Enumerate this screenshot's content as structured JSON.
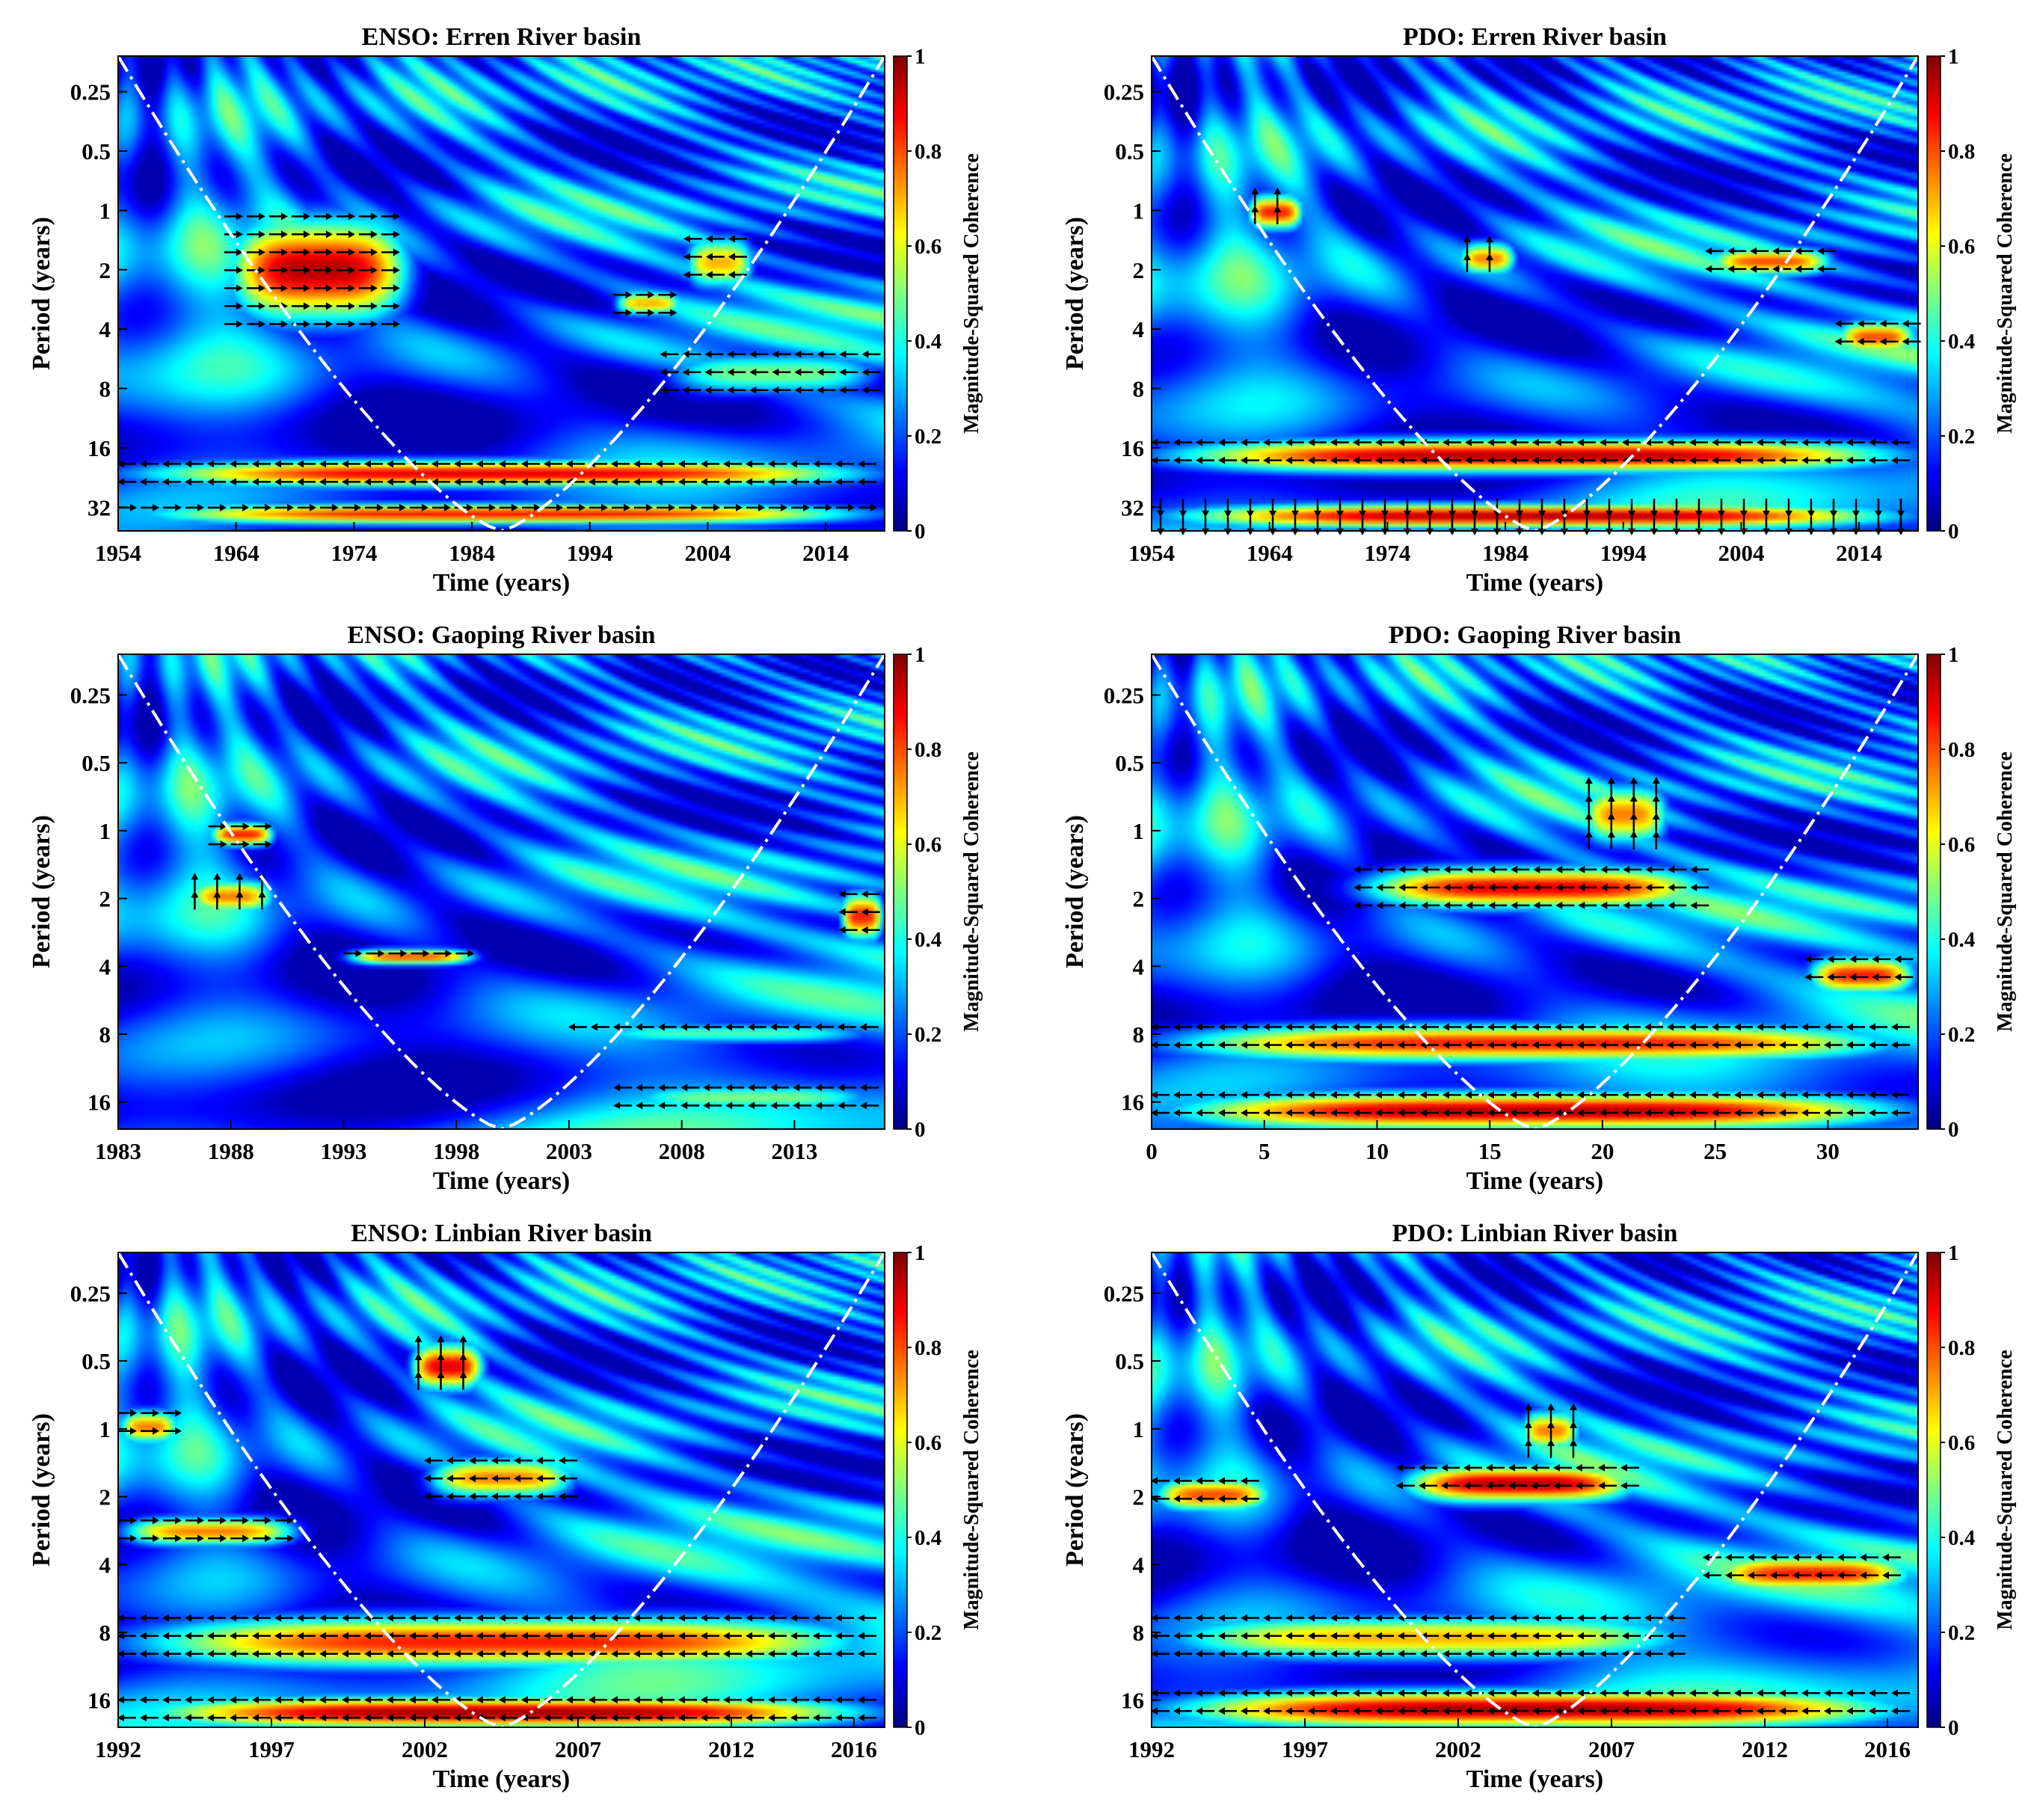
{
  "colors": {
    "cmap": [
      "#00007f",
      "#0000ff",
      "#007fff",
      "#00ffff",
      "#7fff7f",
      "#ffff00",
      "#ff7f00",
      "#ff0000",
      "#7f0000"
    ],
    "coi": "#ffffff",
    "arrow": "#000000",
    "text": "#000000"
  },
  "chart_data": [
    {
      "type": "heatmap",
      "title": "ENSO: Erren River basin",
      "xlabel": "Time (years)",
      "ylabel": "Period (years)",
      "x_ticks": [
        1954,
        1964,
        1974,
        1984,
        1994,
        2004,
        2014
      ],
      "xlim": [
        1954,
        2019
      ],
      "y_ticks": [
        "0.25",
        "0.5",
        "1",
        "2",
        "4",
        "8",
        "16",
        "32"
      ],
      "y_log2_range": [
        -2.6,
        5.4
      ],
      "colorbar": {
        "label": "Magnitude-Squared Coherence",
        "ticks": [
          "0",
          "0.2",
          "0.4",
          "0.6",
          "0.8",
          "1"
        ],
        "range": [
          0,
          1
        ]
      },
      "coi_peak_fraction": 0.47,
      "high_coherence_regions": [
        {
          "t": [
            1963,
            1979
          ],
          "period": [
            1,
            4
          ],
          "level": 0.95,
          "phase": "right"
        },
        {
          "t": [
            1954,
            2019
          ],
          "period": [
            18,
            26
          ],
          "level": 0.9,
          "phase": "left"
        },
        {
          "t": [
            1954,
            2019
          ],
          "period": [
            30,
            40
          ],
          "level": 0.85,
          "phase": "right"
        },
        {
          "t": [
            1996,
            2002
          ],
          "period": [
            2.5,
            3.5
          ],
          "level": 0.7,
          "phase": "right"
        },
        {
          "t": [
            2002,
            2008
          ],
          "period": [
            1.3,
            2.6
          ],
          "level": 0.7,
          "phase": "left"
        },
        {
          "t": [
            2000,
            2019
          ],
          "period": [
            5,
            9
          ],
          "level": 0.5,
          "phase": "left"
        }
      ]
    },
    {
      "type": "heatmap",
      "title": "PDO: Erren River basin",
      "xlabel": "Time (years)",
      "ylabel": "Period (years)",
      "x_ticks": [
        1954,
        1964,
        1974,
        1984,
        1994,
        2004,
        2014
      ],
      "xlim": [
        1954,
        2019
      ],
      "y_ticks": [
        "0.25",
        "0.5",
        "1",
        "2",
        "4",
        "8",
        "16",
        "32"
      ],
      "y_log2_range": [
        -2.6,
        5.4
      ],
      "colorbar": {
        "label": "Magnitude-Squared Coherence",
        "ticks": [
          "0",
          "0.2",
          "0.4",
          "0.6",
          "0.8",
          "1"
        ],
        "range": [
          0,
          1
        ]
      },
      "coi_peak_fraction": 0.5,
      "high_coherence_regions": [
        {
          "t": [
            1962,
            1967
          ],
          "period": [
            0.8,
            1.3
          ],
          "level": 0.85,
          "phase": "up"
        },
        {
          "t": [
            1980,
            1985
          ],
          "period": [
            1.4,
            2.2
          ],
          "level": 0.75,
          "phase": "up"
        },
        {
          "t": [
            2001,
            2012
          ],
          "period": [
            1.5,
            2.2
          ],
          "level": 0.8,
          "phase": "left"
        },
        {
          "t": [
            2012,
            2019
          ],
          "period": [
            3.5,
            5.5
          ],
          "level": 0.8,
          "phase": "left"
        },
        {
          "t": [
            1954,
            2019
          ],
          "period": [
            14,
            22
          ],
          "level": 0.95,
          "phase": "left"
        },
        {
          "t": [
            1954,
            2019
          ],
          "period": [
            30,
            42
          ],
          "level": 0.95,
          "phase": "down"
        }
      ]
    },
    {
      "type": "heatmap",
      "title": "ENSO: Gaoping River basin",
      "xlabel": "Time (years)",
      "ylabel": "Period (years)",
      "x_ticks": [
        1983,
        1988,
        1993,
        1998,
        2003,
        2008,
        2013
      ],
      "xlim": [
        1983,
        2017
      ],
      "y_ticks": [
        "0.25",
        "0.5",
        "1",
        "2",
        "4",
        "8",
        "16"
      ],
      "y_log2_range": [
        -2.6,
        4.4
      ],
      "colorbar": {
        "label": "Magnitude-Squared Coherence",
        "ticks": [
          "0",
          "0.2",
          "0.4",
          "0.6",
          "0.8",
          "1"
        ],
        "range": [
          0,
          1
        ]
      },
      "coi_peak_fraction": 0.5,
      "high_coherence_regions": [
        {
          "t": [
            1987,
            1990
          ],
          "period": [
            0.9,
            1.2
          ],
          "level": 0.85,
          "phase": "right"
        },
        {
          "t": [
            1986,
            1990
          ],
          "period": [
            1.6,
            2.4
          ],
          "level": 0.75,
          "phase": "up"
        },
        {
          "t": [
            1993,
            1999
          ],
          "period": [
            3.3,
            4.0
          ],
          "level": 0.8,
          "phase": "right"
        },
        {
          "t": [
            2015,
            2017
          ],
          "period": [
            1.8,
            3.2
          ],
          "level": 0.85,
          "phase": "left"
        },
        {
          "t": [
            2003,
            2017
          ],
          "period": [
            7,
            9
          ],
          "level": 0.45,
          "phase": "left"
        },
        {
          "t": [
            2005,
            2017
          ],
          "period": [
            13,
            18
          ],
          "level": 0.5,
          "phase": "left"
        }
      ]
    },
    {
      "type": "heatmap",
      "title": "PDO: Gaoping River basin",
      "xlabel": "Time (years)",
      "ylabel": "Period (years)",
      "x_ticks": [
        0,
        5,
        10,
        15,
        20,
        25,
        30
      ],
      "xlim": [
        0,
        34
      ],
      "y_ticks": [
        "0.25",
        "0.5",
        "1",
        "2",
        "4",
        "8",
        "16"
      ],
      "y_log2_range": [
        -2.6,
        4.4
      ],
      "colorbar": {
        "label": "Magnitude-Squared Coherence",
        "ticks": [
          "0",
          "0.2",
          "0.4",
          "0.6",
          "0.8",
          "1"
        ],
        "range": [
          0,
          1
        ]
      },
      "coi_peak_fraction": 0.5,
      "high_coherence_regions": [
        {
          "t": [
            9,
            25
          ],
          "period": [
            1.4,
            2.3
          ],
          "level": 0.9,
          "phase": "left"
        },
        {
          "t": [
            19,
            23
          ],
          "period": [
            0.6,
            1.2
          ],
          "level": 0.75,
          "phase": "up"
        },
        {
          "t": [
            29,
            34
          ],
          "period": [
            3.5,
            5.5
          ],
          "level": 0.85,
          "phase": "left"
        },
        {
          "t": [
            0,
            34
          ],
          "period": [
            7,
            11
          ],
          "level": 0.85,
          "phase": "left"
        },
        {
          "t": [
            0,
            34
          ],
          "period": [
            14,
            22
          ],
          "level": 0.95,
          "phase": "left"
        }
      ]
    },
    {
      "type": "heatmap",
      "title": "ENSO: Linbian River basin",
      "xlabel": "Time (years)",
      "ylabel": "Period (years)",
      "x_ticks": [
        1992,
        1997,
        2002,
        2007,
        2012,
        2016
      ],
      "xlim": [
        1992,
        2017
      ],
      "y_ticks": [
        "0.25",
        "0.5",
        "1",
        "2",
        "4",
        "8",
        "16"
      ],
      "y_log2_range": [
        -2.6,
        4.4
      ],
      "colorbar": {
        "label": "Magnitude-Squared Coherence",
        "ticks": [
          "0",
          "0.2",
          "0.4",
          "0.6",
          "0.8",
          "1"
        ],
        "range": [
          0,
          1
        ]
      },
      "coi_peak_fraction": 0.5,
      "high_coherence_regions": [
        {
          "t": [
            2001.5,
            2004
          ],
          "period": [
            0.4,
            0.7
          ],
          "level": 0.9,
          "phase": "up"
        },
        {
          "t": [
            2002,
            2007
          ],
          "period": [
            1.3,
            2.1
          ],
          "level": 0.75,
          "phase": "left"
        },
        {
          "t": [
            1992,
            1998
          ],
          "period": [
            2.4,
            3.4
          ],
          "level": 0.75,
          "phase": "right"
        },
        {
          "t": [
            1992,
            1994
          ],
          "period": [
            0.8,
            1.2
          ],
          "level": 0.75,
          "phase": "right"
        },
        {
          "t": [
            1992,
            2017
          ],
          "period": [
            6.5,
            12
          ],
          "level": 0.85,
          "phase": "left"
        },
        {
          "t": [
            1992,
            2017
          ],
          "period": [
            15,
            22
          ],
          "level": 0.97,
          "phase": "left"
        }
      ]
    },
    {
      "type": "heatmap",
      "title": "PDO: Linbian River basin",
      "xlabel": "Time (years)",
      "ylabel": "Period (years)",
      "x_ticks": [
        1992,
        1997,
        2002,
        2007,
        2012,
        2016
      ],
      "xlim": [
        1992,
        2017
      ],
      "y_ticks": [
        "0.25",
        "0.5",
        "1",
        "2",
        "4",
        "8",
        "16"
      ],
      "y_log2_range": [
        -2.6,
        4.4
      ],
      "colorbar": {
        "label": "Magnitude-Squared Coherence",
        "ticks": [
          "0",
          "0.2",
          "0.4",
          "0.6",
          "0.8",
          "1"
        ],
        "range": [
          0,
          1
        ]
      },
      "coi_peak_fraction": 0.5,
      "high_coherence_regions": [
        {
          "t": [
            1992,
            1996
          ],
          "period": [
            1.6,
            2.4
          ],
          "level": 0.8,
          "phase": "left"
        },
        {
          "t": [
            2000,
            2008
          ],
          "period": [
            1.4,
            2.2
          ],
          "level": 0.95,
          "phase": "left"
        },
        {
          "t": [
            2004,
            2006
          ],
          "period": [
            0.8,
            1.3
          ],
          "level": 0.75,
          "phase": "up"
        },
        {
          "t": [
            2010,
            2017
          ],
          "period": [
            3.5,
            5.5
          ],
          "level": 0.85,
          "phase": "left"
        },
        {
          "t": [
            1992,
            2010
          ],
          "period": [
            6.5,
            11
          ],
          "level": 0.7,
          "phase": "left"
        },
        {
          "t": [
            1992,
            2017
          ],
          "period": [
            14,
            22
          ],
          "level": 0.97,
          "phase": "left"
        }
      ]
    }
  ]
}
